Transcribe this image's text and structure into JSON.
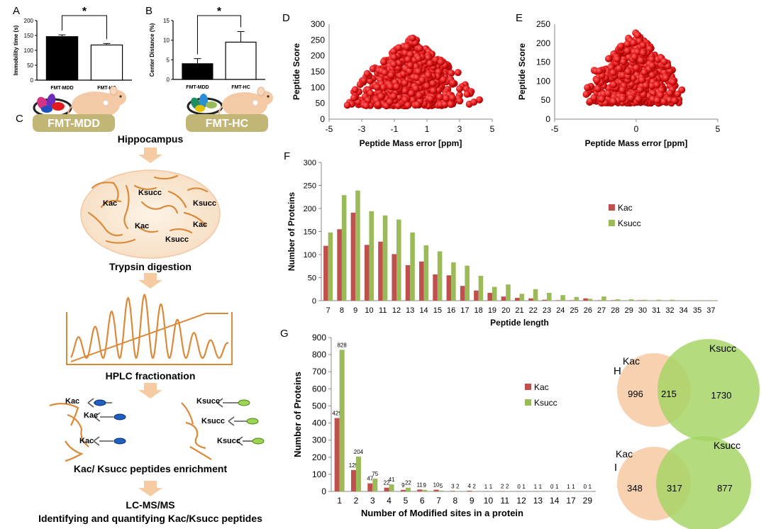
{
  "panel_labels": {
    "a": "A",
    "b": "B",
    "c": "C",
    "d": "D",
    "e": "E",
    "f": "F",
    "g": "G",
    "h": "H",
    "i": "I"
  },
  "workflow": {
    "group1": "FMT-MDD",
    "group2": "FMT-HC",
    "tissue": "Hippocampus",
    "mod_labels": [
      "Ksucc",
      "Kac",
      "Ksucc",
      "Kac",
      "Kac",
      "Ksucc"
    ],
    "step_trypsin": "Trypsin digestion",
    "step_hplc": "HPLC fractionation",
    "enrich_kac": [
      "Kac",
      "Kac",
      "Kac"
    ],
    "enrich_ksucc": [
      "Ksucc",
      "Ksucc",
      "Ksucc"
    ],
    "step_enrich": "Kac/ Ksucc peptides enrichment",
    "step_lcms": "LC-MS/MS",
    "step_identify": "Identifying and quantifying Kac/Ksucc peptides"
  },
  "colors": {
    "kac": "#c0504d",
    "ksucc": "#9bbb59",
    "arrow": "#f7cba2",
    "pill": "#c2b677",
    "curve": "#d98a3a",
    "venn_kac": "#f8d2b0",
    "venn_ksucc": "#a4d462",
    "scatter": "#e31a1c"
  },
  "chart_data": [
    {
      "id": "A",
      "type": "bar",
      "ylabel": "Immobility time (s)",
      "categories": [
        "FMT-MDD",
        "FMT-HC"
      ],
      "values": [
        146,
        118
      ],
      "errors": [
        6,
        5
      ],
      "ylim": [
        0,
        200
      ],
      "yticks": [
        "0",
        "50",
        "100",
        "150",
        "200"
      ],
      "significance": "*"
    },
    {
      "id": "B",
      "type": "bar",
      "ylabel": "Center Distance (%)",
      "categories": [
        "FMT-MDD",
        "FMT-HC"
      ],
      "values": [
        4.0,
        9.5
      ],
      "errors": [
        1.3,
        2.7
      ],
      "ylim": [
        0,
        15
      ],
      "yticks": [
        "0",
        "5",
        "10",
        "15"
      ],
      "significance": "*"
    },
    {
      "id": "D",
      "type": "scatter",
      "xlabel": "Peptide Mass error [ppm]",
      "ylabel": "Peptide Score",
      "xlim": [
        -5,
        5
      ],
      "ylim": [
        0,
        300
      ],
      "xticks": [
        "-5",
        "-3",
        "-1",
        "1",
        "3",
        "5"
      ],
      "yticks": [
        "0",
        "50",
        "100",
        "150",
        "200",
        "250",
        "300"
      ]
    },
    {
      "id": "E",
      "type": "scatter",
      "xlabel": "Peptide Mass error [ppm]",
      "ylabel": "Peptide Score",
      "xlim": [
        -5,
        5
      ],
      "ylim": [
        0,
        250
      ],
      "xticks": [
        "-5",
        "0",
        "5"
      ],
      "yticks": [
        "0",
        "50",
        "100",
        "150",
        "200",
        "250"
      ]
    },
    {
      "id": "F",
      "type": "bar",
      "xlabel": "Peptide length",
      "ylabel": "Number of Proteins",
      "ylim": [
        0,
        300
      ],
      "yticks": [
        "0",
        "50",
        "100",
        "150",
        "200",
        "250",
        "300"
      ],
      "legend": "right",
      "categories": [
        "7",
        "8",
        "9",
        "10",
        "11",
        "12",
        "13",
        "14",
        "15",
        "16",
        "17",
        "18",
        "19",
        "20",
        "21",
        "22",
        "23",
        "24",
        "25",
        "26",
        "27",
        "28",
        "29",
        "30",
        "31",
        "32",
        "34",
        "35",
        "37"
      ],
      "series": [
        {
          "name": "Kac",
          "values": [
            119,
            155,
            191,
            121,
            128,
            101,
            77,
            85,
            57,
            55,
            32,
            22,
            17,
            9,
            6,
            5,
            2,
            1,
            1,
            5,
            1,
            1,
            0,
            1,
            0,
            0,
            0,
            0,
            0
          ]
        },
        {
          "name": "Ksucc",
          "values": [
            148,
            229,
            239,
            194,
            185,
            176,
            148,
            120,
            107,
            83,
            76,
            54,
            30,
            35,
            15,
            25,
            17,
            12,
            8,
            4,
            9,
            3,
            3,
            2,
            2,
            2,
            1,
            1,
            1
          ]
        }
      ]
    },
    {
      "id": "G",
      "type": "bar",
      "xlabel": "Number of Modified sites in a protein",
      "ylabel": "Number of Proteins",
      "ylim": [
        0,
        900
      ],
      "yticks": [
        "0",
        "100",
        "200",
        "300",
        "400",
        "500",
        "600",
        "700",
        "800",
        "900"
      ],
      "legend": "right",
      "categories": [
        "1",
        "2",
        "3",
        "4",
        "5",
        "6",
        "7",
        "8",
        "9",
        "10",
        "11",
        "12",
        "13",
        "14",
        "17",
        "29"
      ],
      "series": [
        {
          "name": "Kac",
          "values": [
            429,
            125,
            47,
            22,
            9,
            11,
            10,
            3,
            4,
            1,
            2,
            0,
            1,
            0,
            1,
            0
          ],
          "labels": [
            "429",
            "125",
            "47",
            "22",
            "9",
            "11",
            "10",
            "3",
            "4",
            "1",
            "2",
            "0",
            "1",
            "0",
            "1",
            "0"
          ]
        },
        {
          "name": "Ksucc",
          "values": [
            828,
            204,
            75,
            41,
            22,
            9,
            5,
            2,
            2,
            1,
            2,
            1,
            1,
            1,
            1,
            1
          ],
          "labels": [
            "828",
            "204",
            "75",
            "41",
            "22",
            "9",
            "5",
            "2",
            "2",
            "1",
            "2",
            "1",
            "1",
            "1",
            "1",
            "1"
          ]
        }
      ]
    },
    {
      "id": "H",
      "type": "venn",
      "sets": [
        "Kac",
        "Ksucc"
      ],
      "only_left": "996",
      "overlap": "215",
      "only_right": "1730"
    },
    {
      "id": "I",
      "type": "venn",
      "sets": [
        "Kac",
        "Ksucc"
      ],
      "only_left": "348",
      "overlap": "317",
      "only_right": "877"
    }
  ]
}
